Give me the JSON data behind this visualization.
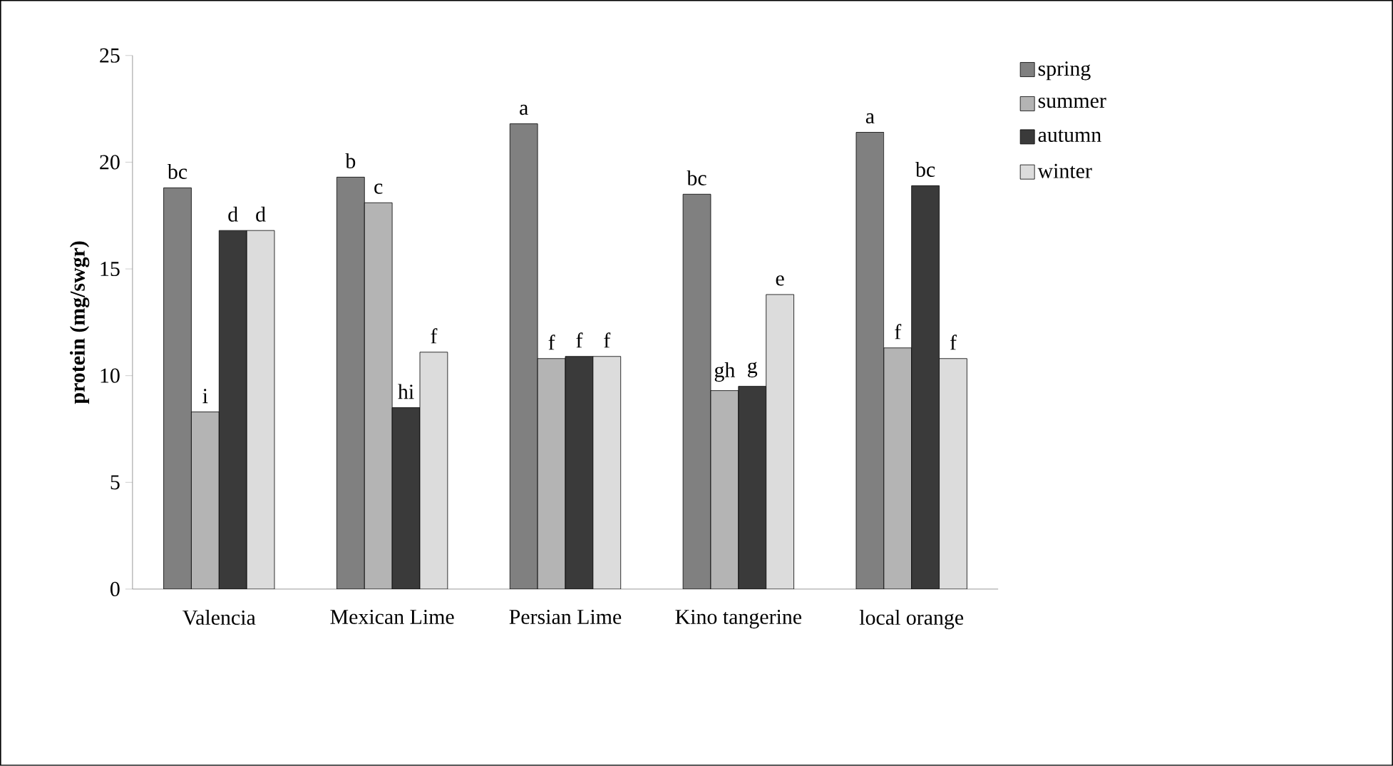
{
  "chart_data": {
    "type": "bar",
    "ylabel": "protein (mg/swgr)",
    "categories": [
      "Valencia",
      "Mexican Lime",
      "Persian Lime",
      "Kino tangerine",
      "local orange"
    ],
    "series": [
      {
        "name": "spring",
        "color": "#808080",
        "values": [
          18.8,
          19.3,
          21.8,
          18.5,
          21.4
        ],
        "value_labels": [
          "bc",
          "b",
          "a",
          "bc",
          "a"
        ]
      },
      {
        "name": "summer",
        "color": "#b4b4b4",
        "values": [
          8.3,
          18.1,
          10.8,
          9.3,
          11.3
        ],
        "value_labels": [
          "i",
          "c",
          "f",
          "gh",
          "f"
        ]
      },
      {
        "name": "autumn",
        "color": "#3a3a3a",
        "values": [
          16.8,
          8.5,
          10.9,
          9.5,
          18.9
        ],
        "value_labels": [
          "d",
          "hi",
          "f",
          "g",
          "bc"
        ]
      },
      {
        "name": "winter",
        "color": "#dcdcdc",
        "values": [
          16.8,
          11.1,
          10.9,
          13.8,
          10.8
        ],
        "value_labels": [
          "d",
          "f",
          "f",
          "e",
          "f"
        ]
      }
    ],
    "ylim": [
      0,
      25
    ],
    "yticks": [
      0,
      5,
      10,
      15,
      20,
      25
    ],
    "legend": "right"
  }
}
